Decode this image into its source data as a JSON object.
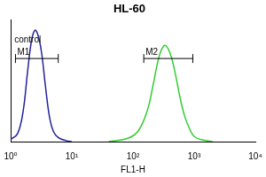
{
  "chart_data": {
    "type": "line",
    "title": "HL-60",
    "x_label": "FL1-H",
    "log": "x",
    "xlim": [
      1,
      10000
    ],
    "xticks": [
      {
        "value": 1,
        "label": "10⁰"
      },
      {
        "value": 10,
        "label": "10¹"
      },
      {
        "value": 100,
        "label": "10²"
      },
      {
        "value": 1000,
        "label": "10³"
      },
      {
        "value": 10000,
        "label": "10⁴"
      }
    ],
    "ylim": [
      0,
      120
    ],
    "tick_labels": "x",
    "grid": false,
    "series": [
      {
        "color": "#22229a",
        "x": [
          1,
          1.3,
          1.6,
          1.9,
          2.2,
          2.5,
          2.8,
          3.2,
          3.7,
          4.3,
          5,
          6,
          8,
          10
        ],
        "values": [
          2,
          8,
          30,
          70,
          100,
          110,
          105,
          88,
          55,
          25,
          10,
          4,
          1,
          0
        ]
      },
      {
        "color": "#33cc33",
        "x": [
          40,
          80,
          120,
          170,
          220,
          270,
          330,
          400,
          480,
          580,
          700,
          850,
          1000,
          1300,
          2000
        ],
        "values": [
          0,
          3,
          10,
          30,
          60,
          85,
          95,
          88,
          70,
          45,
          25,
          12,
          5,
          2,
          0
        ]
      }
    ],
    "annotations": [
      {
        "text": "control",
        "x": 1.15,
        "y": 100
      }
    ],
    "gates": [
      {
        "label": "M1",
        "range": [
          1.2,
          6
        ],
        "y": 82
      },
      {
        "label": "M2",
        "range": [
          150,
          950
        ],
        "y": 82
      }
    ]
  }
}
